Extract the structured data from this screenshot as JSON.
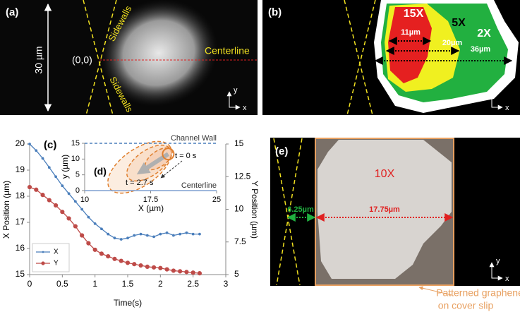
{
  "panels": {
    "a": {
      "label": "(a)",
      "scale": "30 µm",
      "origin": "(0,0)",
      "sidewalls_top": "Sidewalls",
      "sidewalls_bottom": "Sidewalls",
      "centerline": "Centerline",
      "axis_y": "y",
      "axis_x": "x"
    },
    "b": {
      "label": "(b)",
      "regions": [
        {
          "label": "15X",
          "width": "11µm"
        },
        {
          "label": "5X",
          "width": "20µm"
        },
        {
          "label": "2X",
          "width": "36µm"
        }
      ],
      "axis_y": "y",
      "axis_x": "x"
    },
    "e": {
      "label": "(e)",
      "enhancement": "10X",
      "gap": "6.25µm",
      "width": "17.75µm",
      "note": [
        "Patterned graphene",
        "on cover slip"
      ],
      "axis_y": "y",
      "axis_x": "x"
    }
  },
  "chart_data": [
    {
      "type": "line",
      "panel_label": "(c)",
      "x_label": "Time(s)",
      "y_label": "X Position (µm)",
      "y2_label": "Y Position (µm)",
      "xlim": [
        0,
        3
      ],
      "xticks": [
        0,
        0.5,
        1,
        1.5,
        2,
        2.5,
        3
      ],
      "ylim": [
        15,
        20
      ],
      "yticks": [
        15,
        16,
        17,
        18,
        19,
        20
      ],
      "y2lim": [
        5,
        15
      ],
      "y2ticks": [
        5,
        7.5,
        10,
        12.5,
        15
      ],
      "x": [
        0,
        0.1,
        0.2,
        0.3,
        0.4,
        0.5,
        0.6,
        0.7,
        0.8,
        0.9,
        1.0,
        1.1,
        1.2,
        1.3,
        1.4,
        1.5,
        1.6,
        1.7,
        1.8,
        1.9,
        2.0,
        2.1,
        2.2,
        2.3,
        2.4,
        2.5,
        2.6
      ],
      "series": [
        {
          "name": "X",
          "color": "#4a7ebb",
          "marker": "dot",
          "values": [
            20,
            19.75,
            19.45,
            19.1,
            18.75,
            18.4,
            18.1,
            17.8,
            17.5,
            17.2,
            16.95,
            16.75,
            16.55,
            16.4,
            16.35,
            16.4,
            16.5,
            16.55,
            16.5,
            16.45,
            16.55,
            16.6,
            16.5,
            16.55,
            16.6,
            16.55,
            16.55
          ]
        },
        {
          "name": "Y",
          "color": "#be4b48",
          "marker": "circle",
          "axis": "y2",
          "values": [
            11.7,
            11.5,
            11.1,
            10.7,
            10.3,
            9.8,
            9.3,
            8.7,
            8.0,
            7.4,
            6.9,
            6.6,
            6.4,
            6.2,
            6.05,
            5.9,
            5.8,
            5.7,
            5.6,
            5.55,
            5.5,
            5.4,
            5.3,
            5.25,
            5.2,
            5.15,
            5.1
          ]
        }
      ],
      "legend": "lower left"
    },
    {
      "type": "line",
      "panel_label": "(d)",
      "x_label": "X (µm)",
      "y_label": "y (µm)",
      "xlim": [
        10,
        25
      ],
      "xticks": [
        10,
        17.5,
        25
      ],
      "ylim": [
        0,
        15
      ],
      "yticks": [
        0,
        5,
        10,
        15
      ],
      "x": [
        19.5,
        16.4
      ],
      "series": [
        {
          "color": "#b0b0b0",
          "values": [
            11.6,
            6.0
          ]
        }
      ],
      "reflines": [
        {
          "y": 15,
          "label": "Channel Wall",
          "color": "#4a7ebb",
          "dashed": true
        },
        {
          "y": 0,
          "label": "Centerline",
          "color": "#7f9fd0",
          "dashed": false
        }
      ],
      "annotations": [
        "t = 0 s",
        "t = 2.7 s"
      ]
    }
  ]
}
